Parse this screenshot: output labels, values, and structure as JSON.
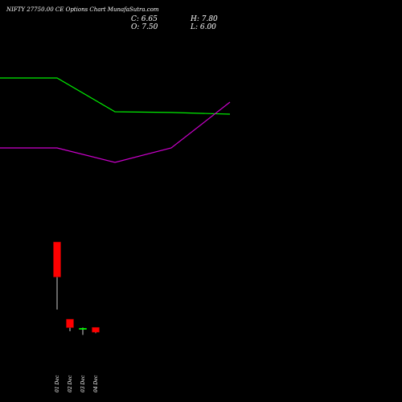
{
  "header": {
    "title": "NIFTY 27750.00  CE Options  Chart MunafaSutra.com",
    "close": "C: 6.65",
    "high": "H: 7.80",
    "open": "O: 7.50",
    "low": "L: 6.00"
  },
  "colors": {
    "background": "#000000",
    "up": "#00ff00",
    "down": "#ff0000",
    "line_green": "#00ee00",
    "line_magenta": "#cc00cc",
    "wick": "#ffffff",
    "text": "#ffffff"
  },
  "chart_data": {
    "type": "candlestick",
    "categories": [
      "01 Dec",
      "02 Dec",
      "03 Dec",
      "04 Dec"
    ],
    "candles": [
      {
        "date": "01 Dec",
        "open": 48.0,
        "high": 48.0,
        "low": 20.0,
        "close": 33.5,
        "direction": "down"
      },
      {
        "date": "02 Dec",
        "open": 16.0,
        "high": 16.0,
        "low": 11.0,
        "close": 12.5,
        "direction": "down"
      },
      {
        "date": "03 Dec",
        "open": 12.0,
        "high": 12.5,
        "low": 9.5,
        "close": 12.2,
        "direction": "up"
      },
      {
        "date": "04 Dec",
        "open": 12.6,
        "high": 12.6,
        "low": 10.2,
        "close": 10.6,
        "direction": "down"
      }
    ],
    "overlay_lines": [
      {
        "color": "green",
        "points": [
          {
            "x": "start",
            "y": 116
          },
          {
            "x": "01 Dec",
            "y": 116
          },
          {
            "x": "02 Dec",
            "y": 102
          },
          {
            "x": "03 Dec",
            "y": 101.7
          },
          {
            "x": "04 Dec",
            "y": 101
          }
        ]
      },
      {
        "color": "magenta",
        "points": [
          {
            "x": "start",
            "y": 87
          },
          {
            "x": "01 Dec",
            "y": 87
          },
          {
            "x": "02 Dec",
            "y": 81
          },
          {
            "x": "03 Dec",
            "y": 87
          },
          {
            "x": "04 Dec",
            "y": 106
          }
        ]
      }
    ],
    "ylim": [
      0,
      132
    ],
    "grid": false,
    "legend": "none"
  }
}
